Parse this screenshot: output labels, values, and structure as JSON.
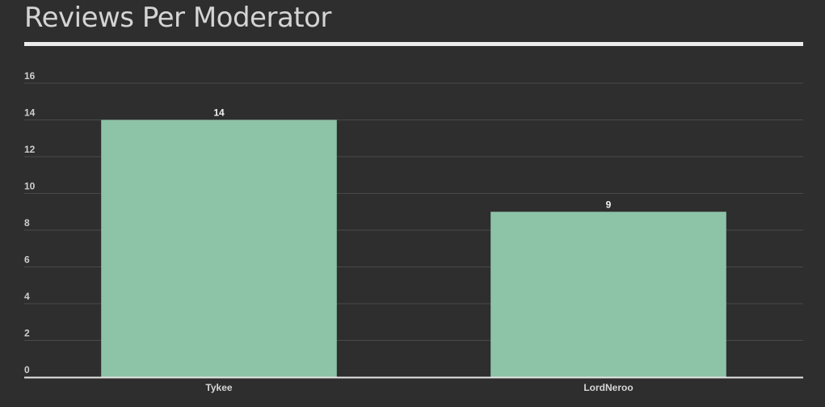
{
  "chart_data": {
    "type": "bar",
    "title": "Reviews Per Moderator",
    "xlabel": "",
    "ylabel": "",
    "categories": [
      "Tykee",
      "LordNeroo"
    ],
    "values": [
      14,
      9
    ],
    "data_labels": [
      "14",
      "9"
    ],
    "ylim": [
      0,
      16
    ],
    "yticks": [
      "0",
      "2",
      "4",
      "6",
      "8",
      "10",
      "12",
      "14",
      "16"
    ],
    "grid": true,
    "legend": "none",
    "bar_color": "#8dc3a7",
    "background_color": "#2e2e2e"
  }
}
